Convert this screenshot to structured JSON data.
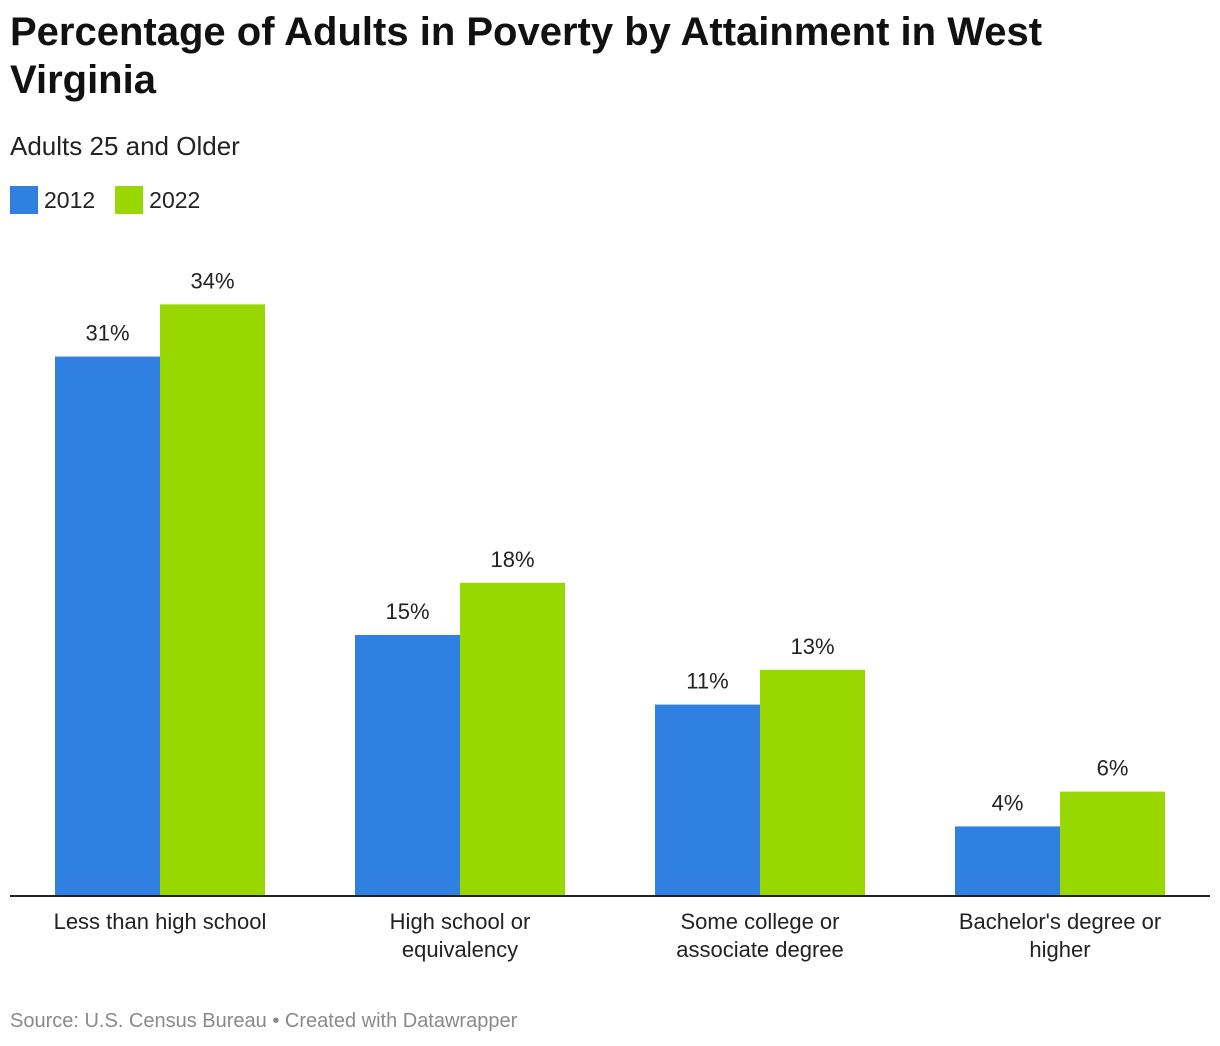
{
  "chart_data": {
    "type": "bar",
    "title": "Percentage of Adults in Poverty by Attainment in West Virginia",
    "subtitle": "Adults 25 and Older",
    "categories": [
      [
        "Less than high school"
      ],
      [
        "High school or",
        "equivalency"
      ],
      [
        "Some college or",
        "associate degree"
      ],
      [
        "Bachelor's degree or",
        "higher"
      ]
    ],
    "series": [
      {
        "name": "2012",
        "color": "#2f80e0",
        "values": [
          31,
          15,
          11,
          4
        ],
        "labels": [
          "31%",
          "15%",
          "11%",
          "4%"
        ]
      },
      {
        "name": "2022",
        "color": "#98d800",
        "values": [
          34,
          18,
          13,
          6
        ],
        "labels": [
          "34%",
          "18%",
          "13%",
          "6%"
        ]
      }
    ],
    "ylim": [
      0,
      34
    ],
    "grid": false,
    "legend_position": "top-left",
    "xlabel": "",
    "ylabel": ""
  },
  "footer": {
    "source": "Source: U.S. Census Bureau • Created with Datawrapper"
  }
}
